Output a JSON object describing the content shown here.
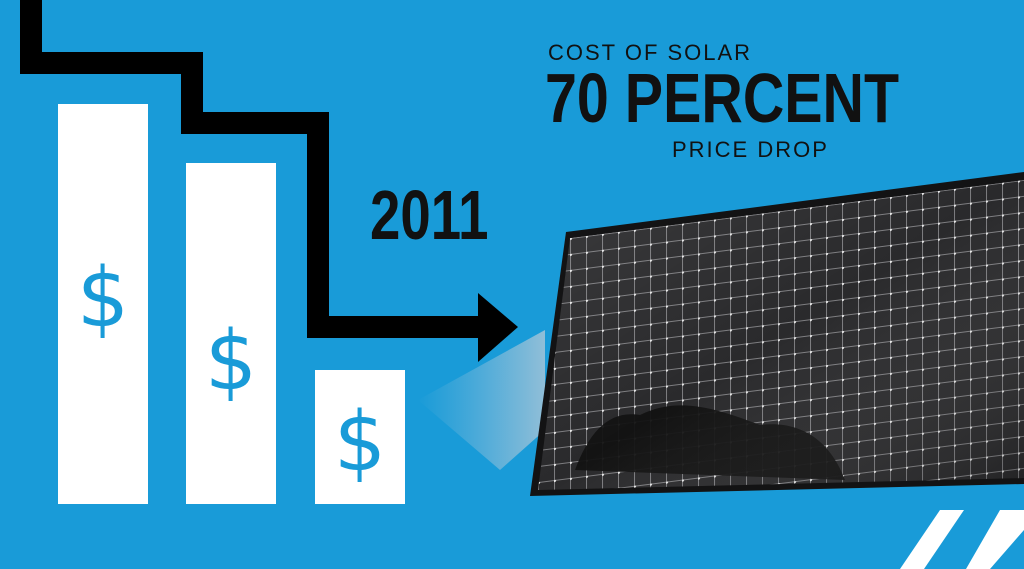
{
  "headline": {
    "top": "COST OF SOLAR",
    "main": "70 PERCENT",
    "bottom": "PRICE DROP"
  },
  "year": "2011",
  "bar_symbols": [
    "$",
    "$",
    "$"
  ],
  "colors": {
    "background": "#199bd8",
    "bars": "#ffffff",
    "arrow": "#000000",
    "dollar": "#199bd8",
    "panel": "#2b2b2d"
  },
  "icons": [
    "dollar-icon",
    "arrow-right-icon",
    "solar-panel-image"
  ]
}
